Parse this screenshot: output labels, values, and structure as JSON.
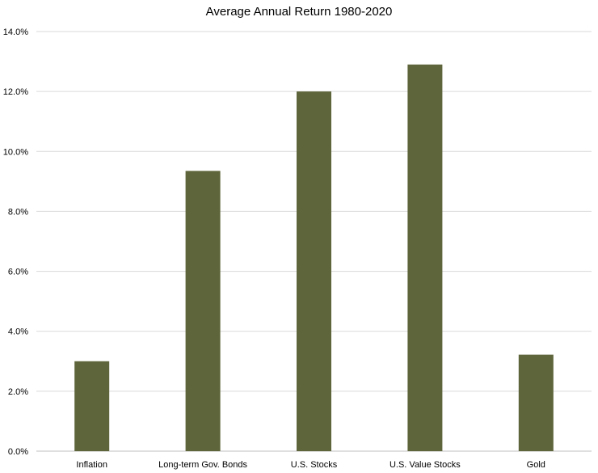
{
  "chart_data": {
    "type": "bar",
    "title": "Average Annual Return 1980-2020",
    "xlabel": "",
    "ylabel": "",
    "categories": [
      "Inflation",
      "Long-term Gov. Bonds",
      "U.S. Stocks",
      "U.S. Value Stocks",
      "Gold"
    ],
    "values": [
      3.0,
      9.35,
      12.0,
      12.9,
      3.22
    ],
    "ylim": [
      0,
      14
    ],
    "yticks": [
      0,
      2,
      4,
      6,
      8,
      10,
      12,
      14
    ],
    "ytick_labels": [
      "0.0%",
      "2.0%",
      "4.0%",
      "6.0%",
      "8.0%",
      "10.0%",
      "12.0%",
      "14.0%"
    ],
    "grid": true,
    "legend": "none",
    "bar_color": "#5e653a",
    "grid_color": "#d9d9d9"
  }
}
